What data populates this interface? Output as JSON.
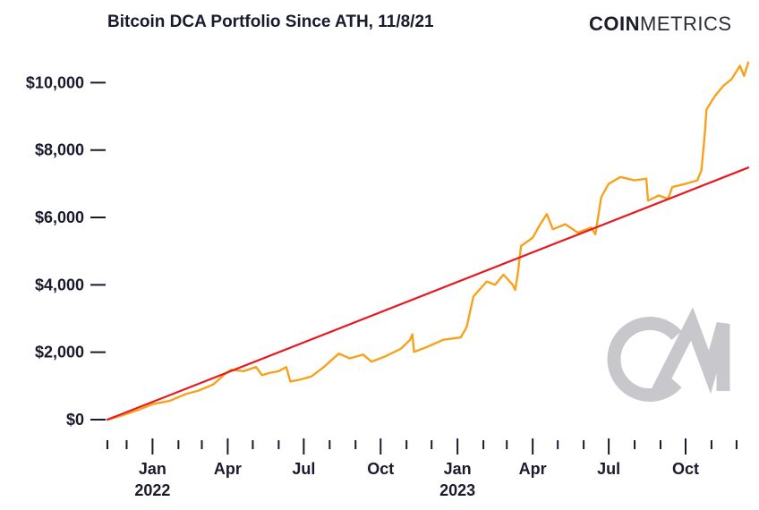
{
  "header": {
    "title": "Bitcoin DCA Portfolio Since ATH, 11/8/21",
    "brand_bold": "COIN",
    "brand_light": "METRICS"
  },
  "watermark": {
    "text": "CM",
    "color": "#c8c8cc"
  },
  "colors": {
    "portfolio": "#F7A21B",
    "invested": "#E8191E",
    "text": "#1a1a2e"
  },
  "chart_data": {
    "type": "line",
    "title": "Bitcoin DCA Portfolio Since ATH, 11/8/21",
    "xlabel": "",
    "ylabel": "",
    "xlim": [
      "2021-11-08",
      "2023-12-15"
    ],
    "ylim": [
      0,
      10700
    ],
    "grid": false,
    "legend": "none",
    "y_ticks": [
      {
        "value": 0,
        "label": "$0"
      },
      {
        "value": 2000,
        "label": "$2,000"
      },
      {
        "value": 4000,
        "label": "$4,000"
      },
      {
        "value": 6000,
        "label": "$6,000"
      },
      {
        "value": 8000,
        "label": "$8,000"
      },
      {
        "value": 10000,
        "label": "$10,000"
      }
    ],
    "x_ticks": [
      {
        "date": "2022-01-01",
        "label": "Jan",
        "sublabel": "2022"
      },
      {
        "date": "2022-04-01",
        "label": "Apr"
      },
      {
        "date": "2022-07-01",
        "label": "Jul"
      },
      {
        "date": "2022-10-01",
        "label": "Oct"
      },
      {
        "date": "2023-01-01",
        "label": "Jan",
        "sublabel": "2023"
      },
      {
        "date": "2023-04-01",
        "label": "Apr"
      },
      {
        "date": "2023-07-01",
        "label": "Jul"
      },
      {
        "date": "2023-10-01",
        "label": "Oct"
      }
    ],
    "minor_ticks": [
      "2021-11-08",
      "2021-12-01",
      "2022-02-01",
      "2022-03-01",
      "2022-05-01",
      "2022-06-01",
      "2022-08-01",
      "2022-09-01",
      "2022-11-01",
      "2022-12-01",
      "2023-02-01",
      "2023-03-01",
      "2023-05-01",
      "2023-06-01",
      "2023-08-01",
      "2023-09-01",
      "2023-11-01",
      "2023-12-01"
    ],
    "series": [
      {
        "key": "portfolio",
        "points": [
          [
            "2021-11-08",
            0
          ],
          [
            "2021-11-25",
            120
          ],
          [
            "2021-12-15",
            290
          ],
          [
            "2022-01-01",
            460
          ],
          [
            "2022-01-22",
            560
          ],
          [
            "2022-02-10",
            760
          ],
          [
            "2022-02-25",
            860
          ],
          [
            "2022-03-15",
            1050
          ],
          [
            "2022-03-30",
            1380
          ],
          [
            "2022-04-05",
            1480
          ],
          [
            "2022-04-20",
            1440
          ],
          [
            "2022-05-05",
            1560
          ],
          [
            "2022-05-12",
            1320
          ],
          [
            "2022-05-20",
            1380
          ],
          [
            "2022-06-01",
            1440
          ],
          [
            "2022-06-10",
            1560
          ],
          [
            "2022-06-15",
            1130
          ],
          [
            "2022-06-25",
            1180
          ],
          [
            "2022-07-10",
            1280
          ],
          [
            "2022-07-25",
            1560
          ],
          [
            "2022-08-12",
            1960
          ],
          [
            "2022-08-25",
            1820
          ],
          [
            "2022-09-10",
            1930
          ],
          [
            "2022-09-20",
            1720
          ],
          [
            "2022-10-05",
            1860
          ],
          [
            "2022-10-25",
            2100
          ],
          [
            "2022-11-05",
            2360
          ],
          [
            "2022-11-08",
            2530
          ],
          [
            "2022-11-10",
            2010
          ],
          [
            "2022-11-25",
            2150
          ],
          [
            "2022-12-15",
            2370
          ],
          [
            "2023-01-05",
            2440
          ],
          [
            "2023-01-12",
            2750
          ],
          [
            "2023-01-20",
            3650
          ],
          [
            "2023-02-05",
            4100
          ],
          [
            "2023-02-15",
            4000
          ],
          [
            "2023-02-25",
            4300
          ],
          [
            "2023-03-08",
            4000
          ],
          [
            "2023-03-11",
            3850
          ],
          [
            "2023-03-14",
            4300
          ],
          [
            "2023-03-18",
            5150
          ],
          [
            "2023-04-01",
            5400
          ],
          [
            "2023-04-10",
            5800
          ],
          [
            "2023-04-18",
            6100
          ],
          [
            "2023-04-25",
            5650
          ],
          [
            "2023-05-10",
            5800
          ],
          [
            "2023-05-25",
            5550
          ],
          [
            "2023-06-10",
            5700
          ],
          [
            "2023-06-15",
            5500
          ],
          [
            "2023-06-22",
            6600
          ],
          [
            "2023-07-01",
            7000
          ],
          [
            "2023-07-15",
            7200
          ],
          [
            "2023-08-01",
            7100
          ],
          [
            "2023-08-15",
            7150
          ],
          [
            "2023-08-17",
            6500
          ],
          [
            "2023-08-30",
            6650
          ],
          [
            "2023-09-10",
            6550
          ],
          [
            "2023-09-15",
            6900
          ],
          [
            "2023-10-01",
            7000
          ],
          [
            "2023-10-15",
            7100
          ],
          [
            "2023-10-20",
            7400
          ],
          [
            "2023-10-24",
            8500
          ],
          [
            "2023-10-26",
            9200
          ],
          [
            "2023-11-05",
            9600
          ],
          [
            "2023-11-15",
            9900
          ],
          [
            "2023-11-25",
            10100
          ],
          [
            "2023-12-05",
            10500
          ],
          [
            "2023-12-10",
            10200
          ],
          [
            "2023-12-15",
            10600
          ]
        ]
      },
      {
        "key": "invested",
        "points": [
          [
            "2021-11-08",
            0
          ],
          [
            "2023-12-15",
            7480
          ]
        ]
      }
    ]
  }
}
